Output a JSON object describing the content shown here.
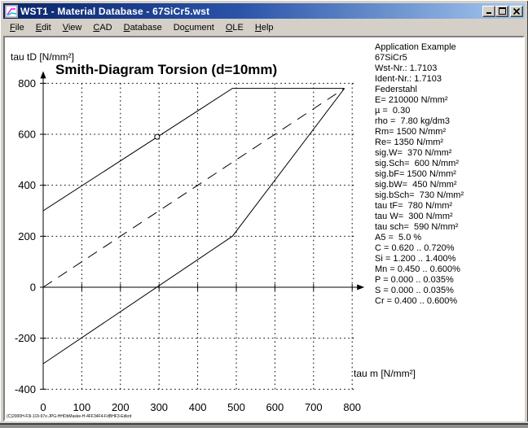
{
  "window": {
    "title": "WST1  -  Material Database  -  67SiCr5.wst",
    "footer_text": "(C)2000H-F3i-1/2i-97z-JPG-HHDbMaske-H-4FF34F4-FdBHF3-Edkrd"
  },
  "menu": {
    "items": [
      {
        "label": "File",
        "accel": 0
      },
      {
        "label": "Edit",
        "accel": 0
      },
      {
        "label": "View",
        "accel": 0
      },
      {
        "label": "CAD",
        "accel": 0
      },
      {
        "label": "Database",
        "accel": 0
      },
      {
        "label": "Document",
        "accel": 2
      },
      {
        "label": "OLE",
        "accel": 0
      },
      {
        "label": "Help",
        "accel": 0
      }
    ]
  },
  "info_panel": {
    "lines": [
      "Application Example",
      "67SiCr5",
      "Wst-Nr.: 1.7103",
      "Ident-Nr.: 1.7103",
      "Federstahl",
      "E= 210000 N/mm²",
      "µ =  0.30",
      "rho =  7.80 kg/dm3",
      "Rm= 1500 N/mm²",
      "Re= 1350 N/mm²",
      "sig.W=  370 N/mm²",
      "sig.Sch=  600 N/mm²",
      "sig.bF= 1500 N/mm²",
      "sig.bW=  450 N/mm²",
      "sig.bSch=  730 N/mm²",
      "tau tF=  780 N/mm²",
      "tau W=  300 N/mm²",
      "tau sch=  590 N/mm²",
      "A5 =  5.0 %",
      "C = 0.620 .. 0.720%",
      "Si = 1.200 .. 1.400%",
      "Mn = 0.450 .. 0.600%",
      "P = 0.000 .. 0.035%",
      "S = 0.000 .. 0.035%",
      "Cr = 0.400 .. 0.600%"
    ]
  },
  "chart_data": {
    "type": "line",
    "title": "Smith-Diagram Torsion (d=10mm)",
    "xlabel": "tau m [N/mm²]",
    "ylabel": "tau tD [N/mm²]",
    "xlim": [
      0,
      830
    ],
    "ylim": [
      -430,
      830
    ],
    "grid": true,
    "x_ticks": [
      0,
      100,
      200,
      300,
      400,
      500,
      600,
      700,
      800
    ],
    "y_ticks": [
      800,
      600,
      400,
      200,
      0,
      -200,
      -400
    ],
    "series": [
      {
        "name": "upper-stress-boundary",
        "style": "solid",
        "points": [
          [
            0,
            300
          ],
          [
            490,
            780
          ],
          [
            780,
            780
          ]
        ]
      },
      {
        "name": "mean-stress-line",
        "style": "dashed",
        "points": [
          [
            0,
            0
          ],
          [
            780,
            780
          ]
        ]
      },
      {
        "name": "lower-stress-boundary",
        "style": "solid",
        "points": [
          [
            0,
            -300
          ],
          [
            490,
            200
          ],
          [
            780,
            780
          ]
        ]
      }
    ],
    "markers": [
      {
        "name": "pulsating-strength-point",
        "x": 295,
        "y": 590,
        "shape": "circle"
      }
    ],
    "line_color": "#000000"
  }
}
